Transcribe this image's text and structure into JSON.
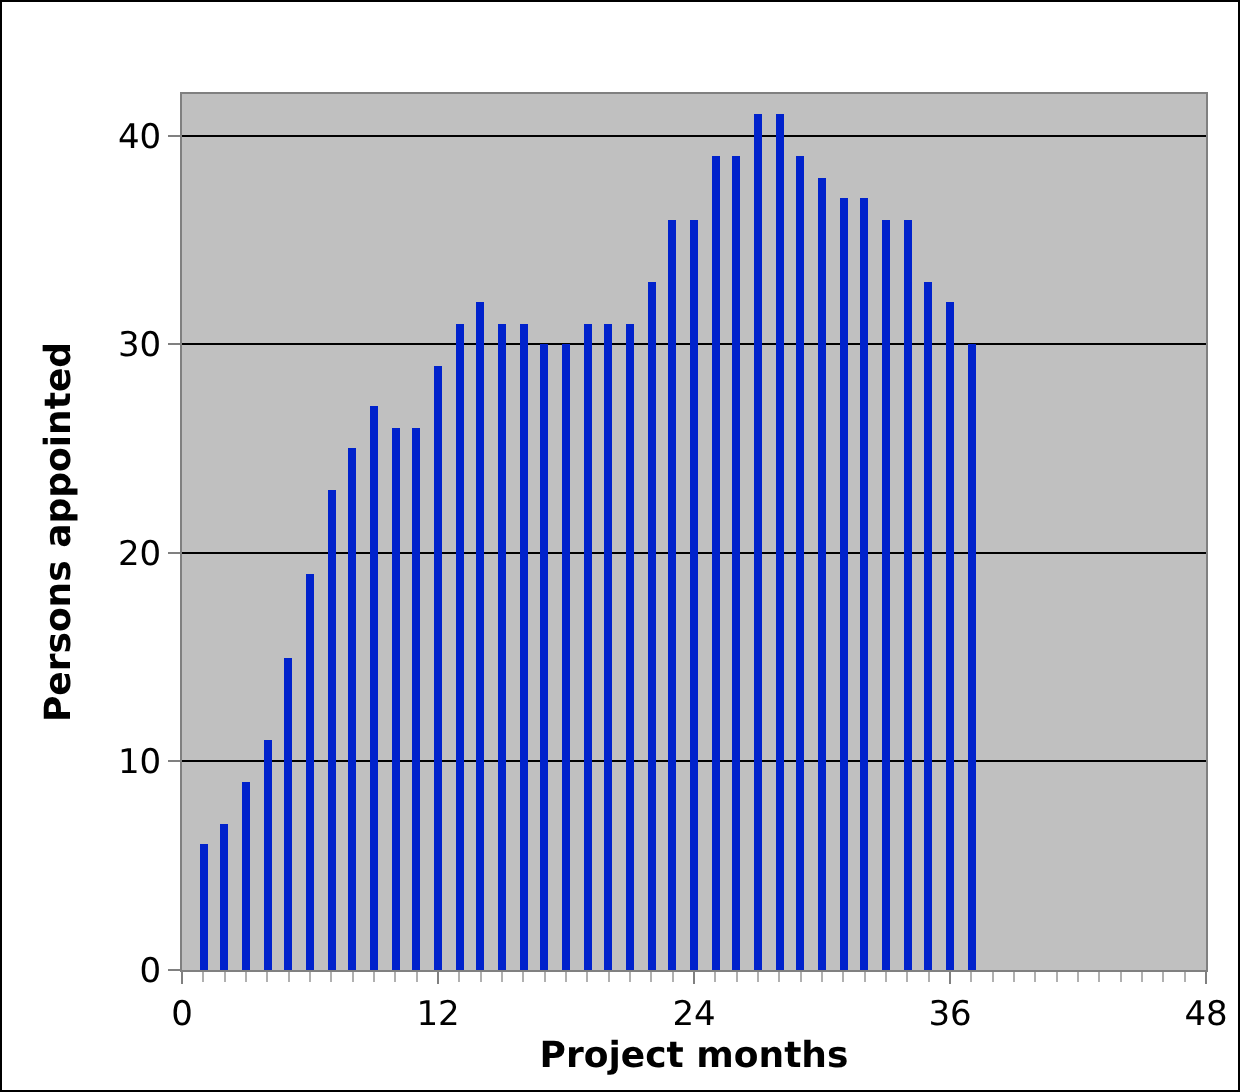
{
  "chart_data": {
    "type": "bar",
    "xlabel": "Project months",
    "ylabel": "Persons appointed",
    "x": [
      1,
      2,
      3,
      4,
      5,
      6,
      7,
      8,
      9,
      10,
      11,
      12,
      13,
      14,
      15,
      16,
      17,
      18,
      19,
      20,
      21,
      22,
      23,
      24,
      25,
      26,
      27,
      28,
      29,
      30,
      31,
      32,
      33,
      34,
      35,
      36,
      37
    ],
    "values": [
      6,
      7,
      9,
      11,
      15,
      19,
      23,
      25,
      27,
      26,
      26,
      29,
      31,
      32,
      31,
      31,
      30,
      30,
      31,
      31,
      31,
      33,
      36,
      36,
      39,
      39,
      41,
      41,
      39,
      38,
      37,
      37,
      36,
      36,
      33,
      32,
      30
    ],
    "color": "#0022cc",
    "xlim": [
      0,
      48
    ],
    "xticks": [
      0,
      12,
      24,
      36,
      48
    ],
    "ylim": [
      0,
      42
    ],
    "yticks": [
      0,
      10,
      20,
      30,
      40
    ],
    "grid": "y",
    "legend": false
  }
}
